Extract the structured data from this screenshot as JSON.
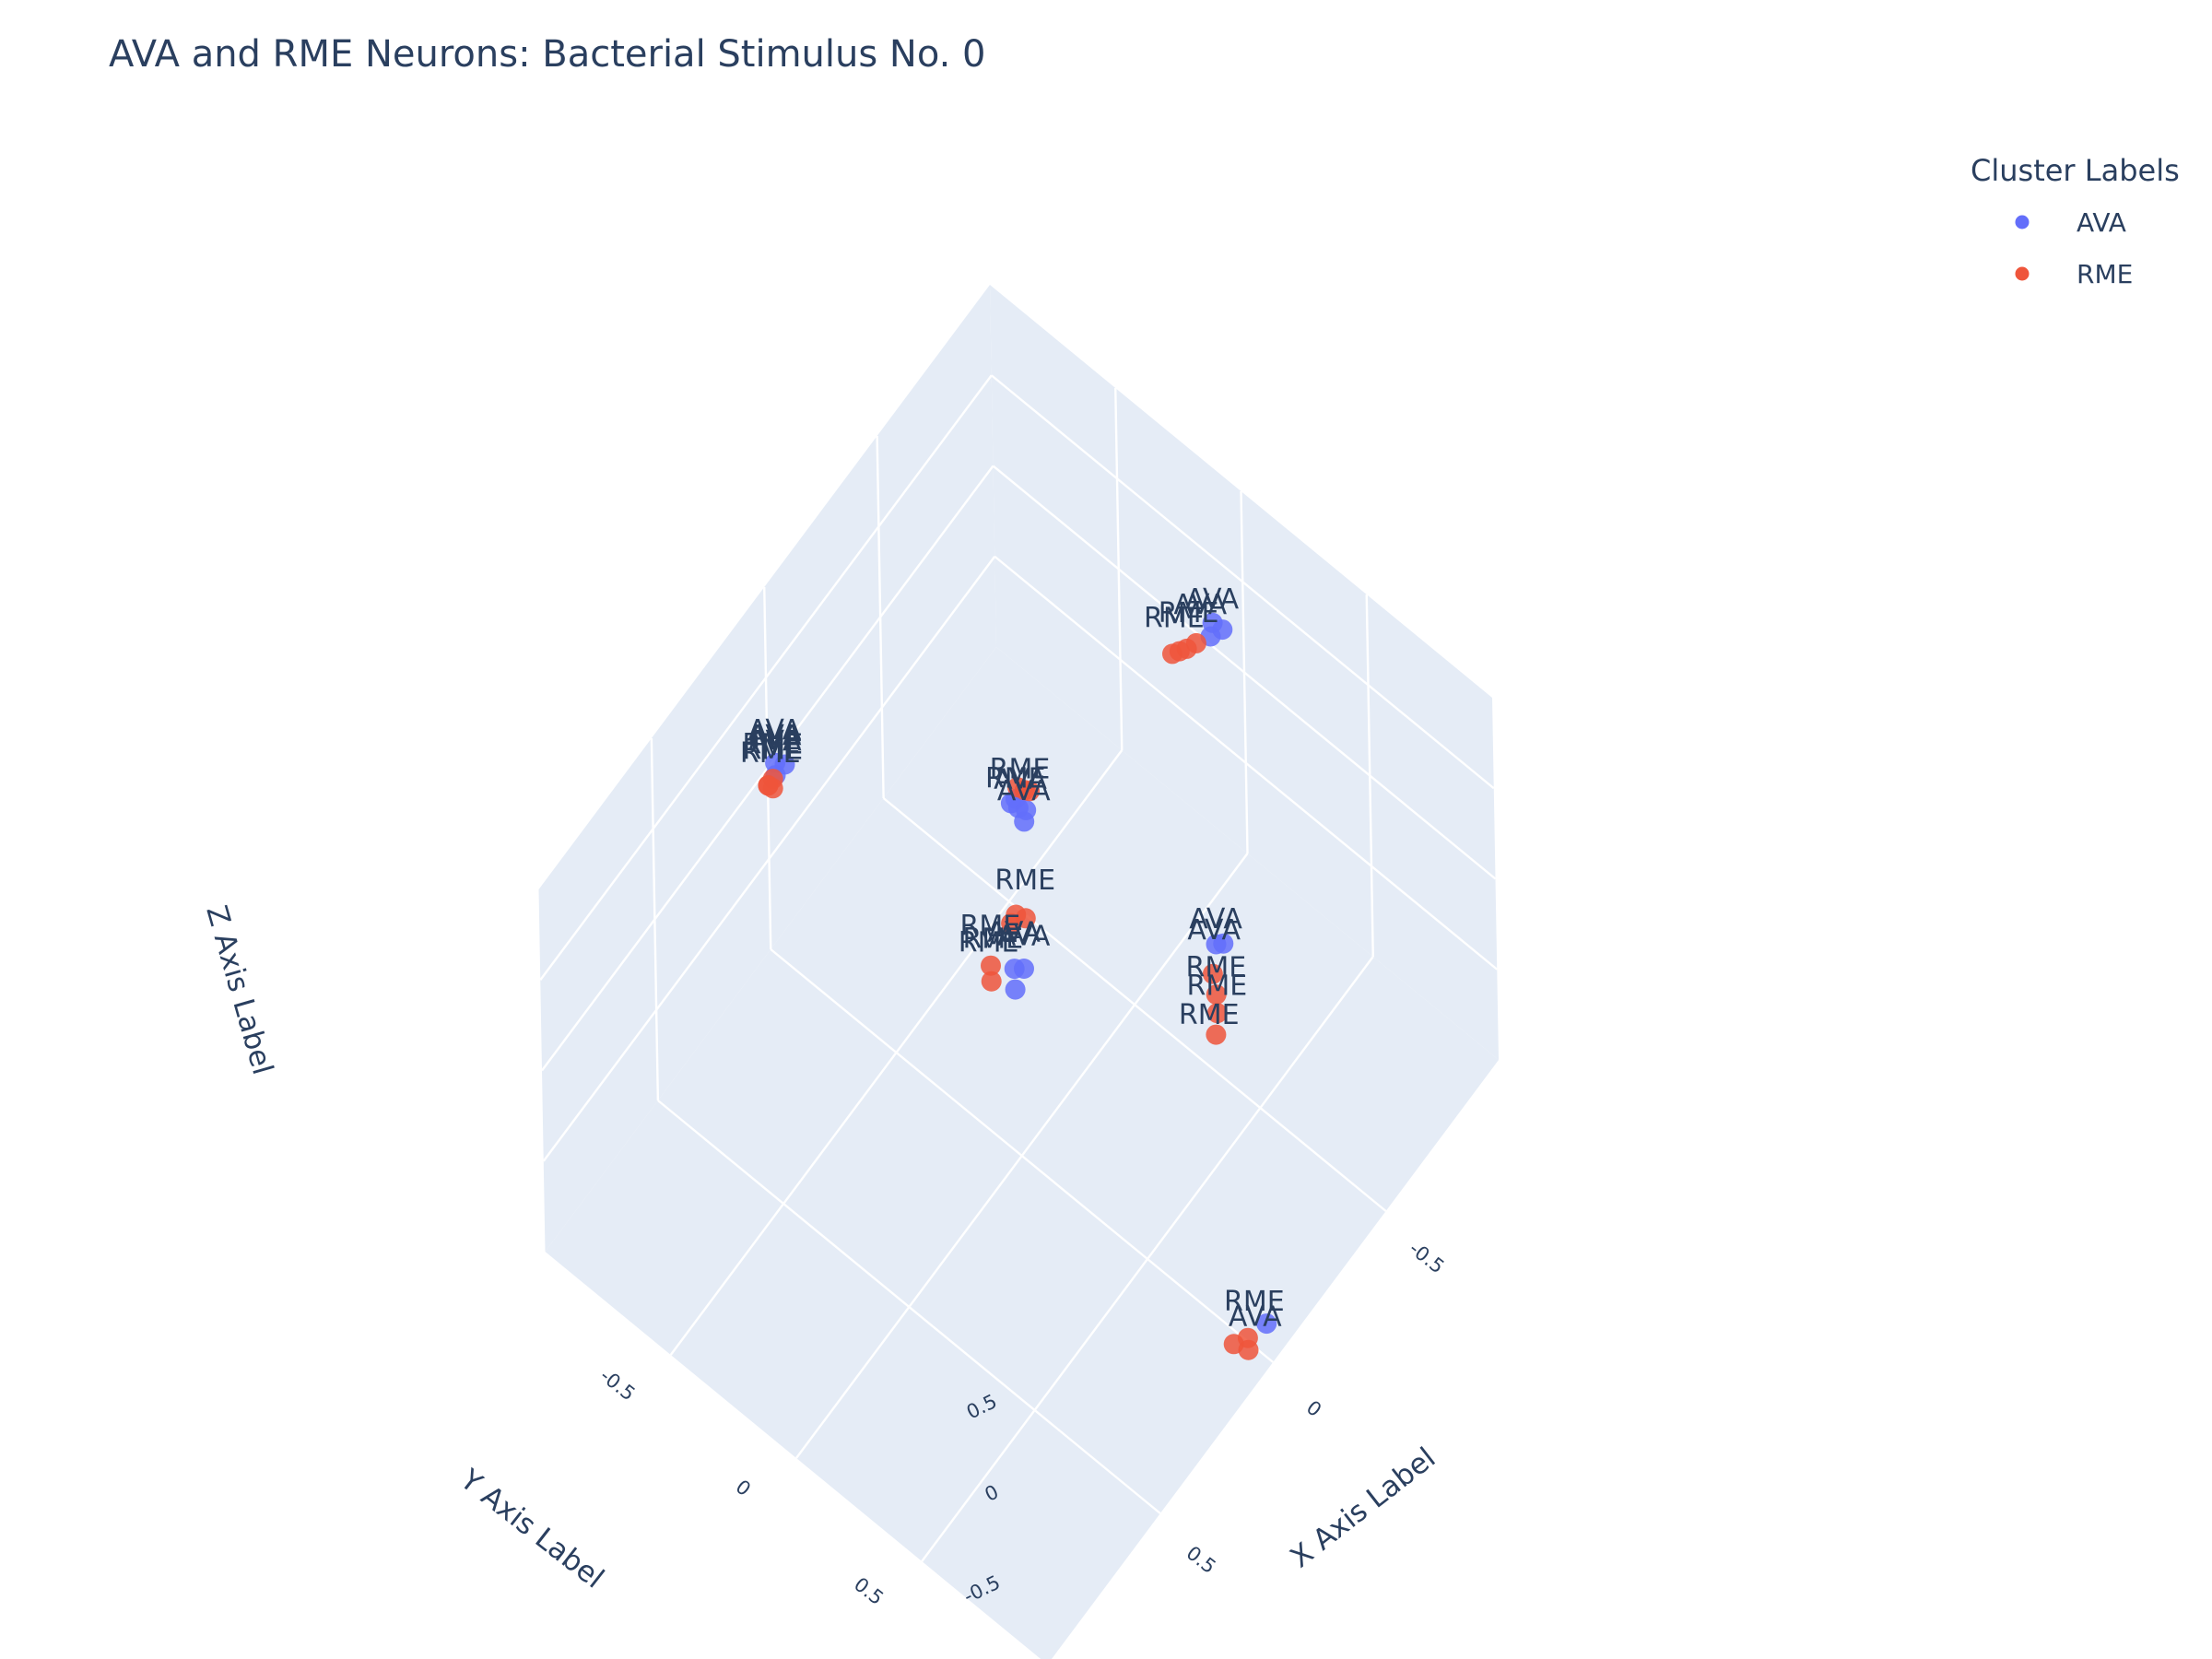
{
  "chart_data": {
    "type": "scatter3d",
    "title": "AVA and RME Neurons: Bacterial Stimulus No. 0",
    "axes": {
      "x": {
        "label": "X Axis Label",
        "ticks": [
          "-0.5",
          "0",
          "0.5"
        ]
      },
      "y": {
        "label": "Y Axis Label",
        "ticks": [
          "-0.5",
          "0",
          "0.5"
        ]
      },
      "z": {
        "label": "Z Axis Label",
        "ticks": [
          "-0.5",
          "0",
          "0.5"
        ]
      }
    },
    "legend": {
      "title": "Cluster Labels",
      "placement": "top-right",
      "items": [
        {
          "name": "AVA",
          "color": "#636efa"
        },
        {
          "name": "RME",
          "color": "#ef553b"
        }
      ]
    },
    "series": [
      {
        "name": "AVA",
        "color": "#636efa",
        "points": [
          {
            "x": 0.0,
            "y": 0.0,
            "z": 0.97
          },
          {
            "x": 0.02,
            "y": 0.0,
            "z": 0.98
          },
          {
            "x": 0.01,
            "y": 0.02,
            "z": 0.96
          },
          {
            "x": -0.92,
            "y": -0.05,
            "z": 0.35
          },
          {
            "x": -0.93,
            "y": -0.02,
            "z": 0.33
          },
          {
            "x": -0.9,
            "y": -0.04,
            "z": 0.32
          },
          {
            "x": 0.02,
            "y": -0.95,
            "z": 0.12
          },
          {
            "x": 0.0,
            "y": -0.93,
            "z": 0.1
          },
          {
            "x": 0.03,
            "y": -0.94,
            "z": 0.08
          },
          {
            "x": 0.05,
            "y": 0.03,
            "z": 0.15
          },
          {
            "x": 0.03,
            "y": 0.05,
            "z": 0.14
          },
          {
            "x": 0.08,
            "y": 0.06,
            "z": 0.12
          },
          {
            "x": -0.25,
            "y": -0.2,
            "z": 0.2
          },
          {
            "x": -0.28,
            "y": -0.22,
            "z": 0.19
          },
          {
            "x": -0.05,
            "y": 0.93,
            "z": -0.95
          },
          {
            "x": -0.75,
            "y": 0.1,
            "z": -0.97
          },
          {
            "x": -0.76,
            "y": 0.12,
            "z": -0.96
          }
        ]
      },
      {
        "name": "RME",
        "color": "#ef553b",
        "points": [
          {
            "x": -0.03,
            "y": 0.01,
            "z": 0.98
          },
          {
            "x": -0.02,
            "y": -0.01,
            "z": 0.99
          },
          {
            "x": -0.04,
            "y": 0.02,
            "z": 0.97
          },
          {
            "x": -0.88,
            "y": -0.08,
            "z": 0.27
          },
          {
            "x": -0.86,
            "y": -0.1,
            "z": 0.25
          },
          {
            "x": -0.85,
            "y": -0.12,
            "z": 0.23
          },
          {
            "x": -0.84,
            "y": -0.14,
            "z": 0.21
          },
          {
            "x": 0.02,
            "y": -0.96,
            "z": 0.02
          },
          {
            "x": 0.03,
            "y": -0.97,
            "z": -0.01
          },
          {
            "x": 0.02,
            "y": -0.98,
            "z": -0.04
          },
          {
            "x": 0.01,
            "y": -0.97,
            "z": -0.06
          },
          {
            "x": 0.12,
            "y": 0.0,
            "z": 0.25
          },
          {
            "x": 0.14,
            "y": 0.02,
            "z": 0.22
          },
          {
            "x": -0.1,
            "y": -0.1,
            "z": 0.05
          },
          {
            "x": -0.12,
            "y": -0.08,
            "z": 0.02
          },
          {
            "x": -0.1,
            "y": -0.12,
            "z": -0.02
          },
          {
            "x": 0.0,
            "y": 0.9,
            "z": -0.98
          },
          {
            "x": 0.04,
            "y": 0.88,
            "z": -0.97
          },
          {
            "x": 0.02,
            "y": 0.92,
            "z": -0.99
          },
          {
            "x": -0.68,
            "y": 0.15,
            "z": -0.96
          },
          {
            "x": -0.64,
            "y": 0.2,
            "z": -0.95
          },
          {
            "x": -0.6,
            "y": 0.24,
            "z": -0.94
          },
          {
            "x": -0.55,
            "y": 0.28,
            "z": -0.93
          }
        ]
      }
    ],
    "text_labels": [
      {
        "text": "RME",
        "x": -0.02,
        "y": 0.0,
        "z": 1.05
      },
      {
        "text": "RME",
        "x": 0.01,
        "y": 0.01,
        "z": 1.06
      },
      {
        "text": "AVA",
        "x": 0.0,
        "y": 0.02,
        "z": 1.05
      },
      {
        "text": "AVA",
        "x": -0.92,
        "y": -0.05,
        "z": 0.43
      },
      {
        "text": "AVA",
        "x": -0.9,
        "y": -0.08,
        "z": 0.4
      },
      {
        "text": "RME",
        "x": -0.87,
        "y": -0.1,
        "z": 0.38
      },
      {
        "text": "RME",
        "x": -0.85,
        "y": -0.14,
        "z": 0.34
      },
      {
        "text": "AVA",
        "x": 0.02,
        "y": -0.95,
        "z": 0.25
      },
      {
        "text": "AVA",
        "x": 0.02,
        "y": -0.95,
        "z": 0.22
      },
      {
        "text": "AVA",
        "x": 0.02,
        "y": -0.95,
        "z": 0.19
      },
      {
        "text": "RME",
        "x": 0.02,
        "y": -0.96,
        "z": 0.16
      },
      {
        "text": "RME",
        "x": 0.02,
        "y": -0.96,
        "z": 0.13
      },
      {
        "text": "RME",
        "x": 0.02,
        "y": -0.97,
        "z": 0.1
      },
      {
        "text": "RME",
        "x": 0.12,
        "y": 0.0,
        "z": 0.42
      },
      {
        "text": "RME",
        "x": 0.15,
        "y": 0.02,
        "z": 0.4
      },
      {
        "text": "RME",
        "x": 0.12,
        "y": 0.01,
        "z": 0.36
      },
      {
        "text": "AVA",
        "x": 0.05,
        "y": 0.03,
        "z": 0.3
      },
      {
        "text": "AVA",
        "x": 0.03,
        "y": 0.05,
        "z": 0.27
      },
      {
        "text": "AVA",
        "x": -0.25,
        "y": -0.2,
        "z": 0.32
      },
      {
        "text": "RME",
        "x": -0.12,
        "y": -0.08,
        "z": 0.18
      },
      {
        "text": "RME",
        "x": -0.03,
        "y": 0.9,
        "z": -0.88
      },
      {
        "text": "AVA",
        "x": 0.0,
        "y": 0.93,
        "z": -0.88
      },
      {
        "text": "RME",
        "x": -0.52,
        "y": 0.28,
        "z": -0.82
      },
      {
        "text": "RME",
        "x": -0.6,
        "y": 0.24,
        "z": -0.84
      },
      {
        "text": "RME",
        "x": -0.64,
        "y": 0.2,
        "z": -0.85
      },
      {
        "text": "AVA",
        "x": -0.72,
        "y": 0.12,
        "z": -0.87
      },
      {
        "text": "AVA",
        "x": -0.75,
        "y": 0.1,
        "z": -0.88
      }
    ],
    "ranges": {
      "x": [
        -1,
        1
      ],
      "y": [
        -1,
        1
      ],
      "z": [
        -1,
        1
      ]
    },
    "grid": true
  }
}
